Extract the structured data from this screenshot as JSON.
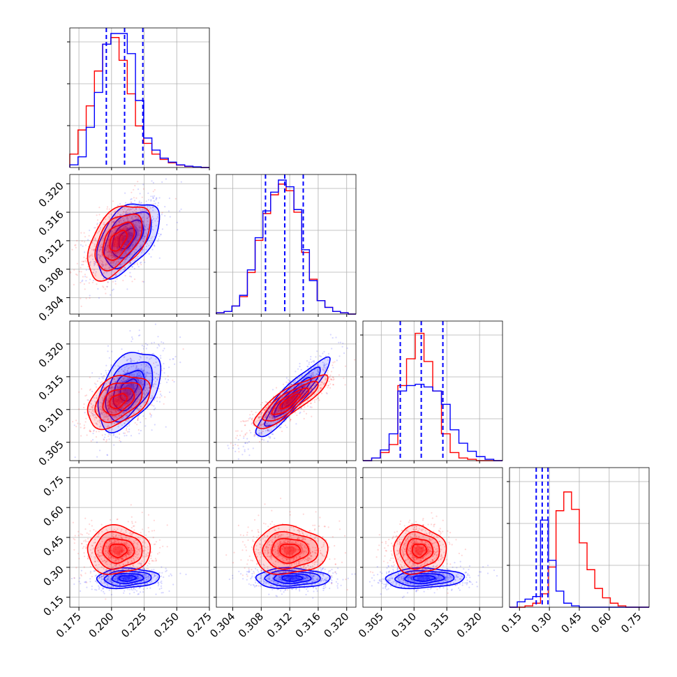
{
  "chart_data": {
    "type": "corner",
    "grid": true,
    "series": [
      {
        "color": "#0000ff"
      },
      {
        "color": "#ff0000"
      }
    ],
    "quantile_line_color": "#0000ff",
    "params": [
      {
        "range": [
          0.168,
          0.275
        ],
        "ticks": [
          "0.175",
          "0.200",
          "0.225",
          "0.250",
          "0.275"
        ],
        "tick_values": [
          0.175,
          0.2,
          0.225,
          0.25,
          0.275
        ],
        "quantiles": [
          0.196,
          0.21,
          0.224
        ],
        "hist_blue": [
          0.02,
          0.08,
          0.3,
          0.56,
          0.92,
          1.0,
          1.0,
          0.85,
          0.5,
          0.22,
          0.13,
          0.07,
          0.04,
          0.02,
          0.01,
          0.005,
          0.0
        ],
        "hist_red": [
          0.1,
          0.28,
          0.46,
          0.72,
          0.92,
          0.97,
          0.8,
          0.55,
          0.31,
          0.18,
          0.1,
          0.06,
          0.035,
          0.018,
          0.008,
          0.003,
          0.0
        ]
      },
      {
        "range": [
          0.3017,
          0.3213
        ],
        "ticks": [
          "0.304",
          "0.308",
          "0.312",
          "0.316",
          "0.320"
        ],
        "tick_values": [
          0.304,
          0.308,
          0.312,
          0.316,
          0.32
        ],
        "quantiles": [
          0.3086,
          0.3113,
          0.3139
        ],
        "hist_blue": [
          0.01,
          0.02,
          0.06,
          0.14,
          0.33,
          0.57,
          0.77,
          0.91,
          1.0,
          0.95,
          0.78,
          0.48,
          0.25,
          0.1,
          0.05,
          0.02,
          0.01,
          0.0
        ],
        "hist_red": [
          0.01,
          0.02,
          0.06,
          0.13,
          0.31,
          0.55,
          0.75,
          0.89,
          0.97,
          0.92,
          0.76,
          0.46,
          0.26,
          0.1,
          0.05,
          0.02,
          0.01,
          0.0
        ]
      },
      {
        "range": [
          0.3022,
          0.3235
        ],
        "ticks": [
          "0.305",
          "0.310",
          "0.315",
          "0.320"
        ],
        "tick_values": [
          0.305,
          0.31,
          0.315,
          0.32
        ],
        "quantiles": [
          0.3079,
          0.3111,
          0.3144
        ],
        "hist_blue": [
          0.0,
          0.02,
          0.08,
          0.2,
          0.52,
          0.56,
          0.57,
          0.55,
          0.52,
          0.42,
          0.23,
          0.13,
          0.07,
          0.03,
          0.01,
          0.0
        ],
        "hist_red": [
          0.0,
          0.02,
          0.06,
          0.12,
          0.56,
          0.76,
          0.95,
          0.74,
          0.52,
          0.2,
          0.06,
          0.02,
          0.01,
          0.0,
          0.0,
          0.0
        ]
      },
      {
        "range": [
          0.1,
          0.8
        ],
        "ticks": [
          "0.15",
          "0.30",
          "0.45",
          "0.60",
          "0.75"
        ],
        "tick_values": [
          0.15,
          0.3,
          0.45,
          0.6,
          0.75
        ],
        "quantiles": [
          0.234,
          0.264,
          0.293
        ],
        "hist_blue": [
          0.0,
          0.04,
          0.06,
          0.08,
          0.65,
          0.35,
          0.12,
          0.03,
          0.01,
          0.0,
          0.0,
          0.0,
          0.0,
          0.0,
          0.0,
          0.0,
          0.0,
          0.0
        ],
        "hist_red": [
          0.0,
          0.0,
          0.01,
          0.03,
          0.1,
          0.3,
          0.72,
          0.86,
          0.73,
          0.48,
          0.28,
          0.14,
          0.07,
          0.03,
          0.01,
          0.0,
          0.0,
          0.0
        ]
      }
    ],
    "pairs": [
      {
        "row": 1,
        "col": 0,
        "blue": {
          "mean": [
            0.212,
            0.3123
          ],
          "sd": [
            0.012,
            0.0026
          ],
          "rho": 0.5
        },
        "red": {
          "mean": [
            0.205,
            0.312
          ],
          "sd": [
            0.012,
            0.0026
          ],
          "rho": 0.5
        }
      },
      {
        "row": 2,
        "col": 0,
        "blue": {
          "mean": [
            0.213,
            0.313
          ],
          "sd": [
            0.012,
            0.003
          ],
          "rho": 0.45
        },
        "red": {
          "mean": [
            0.205,
            0.3113
          ],
          "sd": [
            0.012,
            0.002
          ],
          "rho": 0.4
        }
      },
      {
        "row": 2,
        "col": 1,
        "blue": {
          "mean": [
            0.3123,
            0.3118
          ],
          "sd": [
            0.0026,
            0.003
          ],
          "rho": 0.92
        },
        "red": {
          "mean": [
            0.312,
            0.3112
          ],
          "sd": [
            0.0026,
            0.002
          ],
          "rho": 0.85
        }
      },
      {
        "row": 3,
        "col": 0,
        "blue": {
          "mean": [
            0.212,
            0.245
          ],
          "sd": [
            0.012,
            0.025
          ],
          "rho": 0.1
        },
        "red": {
          "mean": [
            0.205,
            0.385
          ],
          "sd": [
            0.012,
            0.06
          ],
          "rho": 0.0
        }
      },
      {
        "row": 3,
        "col": 1,
        "blue": {
          "mean": [
            0.3123,
            0.245
          ],
          "sd": [
            0.0026,
            0.025
          ],
          "rho": 0.0
        },
        "red": {
          "mean": [
            0.312,
            0.385
          ],
          "sd": [
            0.0026,
            0.06
          ],
          "rho": 0.0
        }
      },
      {
        "row": 3,
        "col": 2,
        "blue": {
          "mean": [
            0.3115,
            0.245
          ],
          "sd": [
            0.003,
            0.025
          ],
          "rho": 0.1
        },
        "red": {
          "mean": [
            0.3108,
            0.385
          ],
          "sd": [
            0.002,
            0.06
          ],
          "rho": 0.0
        }
      }
    ]
  }
}
